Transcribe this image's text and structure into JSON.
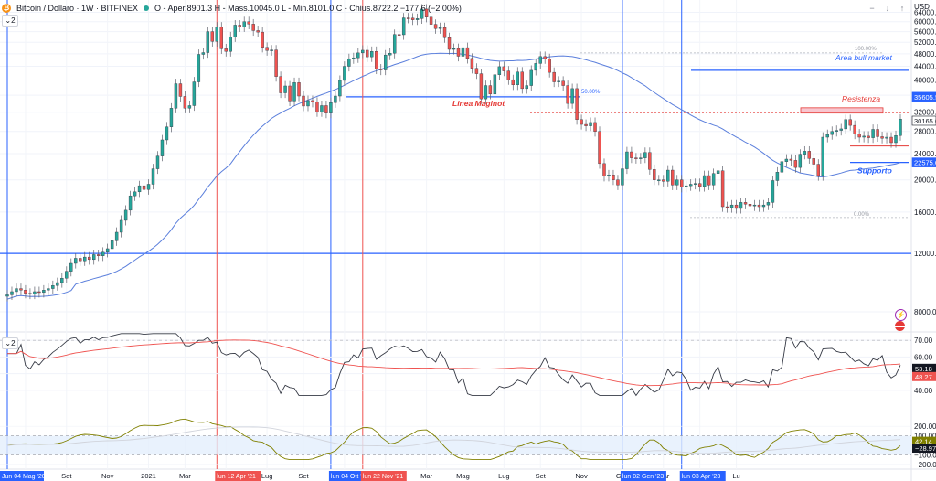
{
  "legend": {
    "symbol_title": "Bitcoin / Dollaro · 1W · BITFINEX",
    "ohlc": "O - Aper.8901.3  H - Mass.10045.0  L - Min.8101.0  C - Chius.8722.2  −177.6 (−2.00%)",
    "change": "",
    "pane_badge": "2"
  },
  "top_buttons": [
    "−",
    "↓",
    "↑"
  ],
  "chart_data": {
    "type": "candlestick",
    "title": "Bitcoin / Dollaro · 1W · BITFINEX",
    "currency": "USD",
    "scale": "log",
    "ylim": [
      7000,
      68000
    ],
    "price_ticks": [
      64000,
      60000,
      56000,
      52000,
      48000,
      44000,
      40000,
      36000,
      32000,
      28000,
      24000,
      20000,
      16000,
      12000,
      8000
    ],
    "price_tick_labels": [
      "64000.00",
      "60000.00",
      "56000.00",
      "52000.00",
      "48000.00",
      "44000.00",
      "40000.00",
      "36000.00",
      "32000.00",
      "28000.00",
      "24000.00",
      "20000.00",
      "16000.00",
      "12000.00",
      "8000.00"
    ],
    "x_labels": [
      "Jun 04 Mag '20",
      "Lug",
      "Set",
      "Nov",
      "2021",
      "Mar",
      "Mag",
      "Lug",
      "Set",
      "Nov",
      "2022",
      "Mar",
      "Mag",
      "Lug",
      "Set",
      "Nov",
      "Gen",
      "Mar",
      "Mag",
      "Lu"
    ],
    "closes": [
      9000,
      9200,
      9400,
      9300,
      9100,
      9050,
      9200,
      9150,
      9300,
      9400,
      9600,
      9800,
      10100,
      10600,
      11200,
      11600,
      11400,
      11700,
      11500,
      11900,
      11800,
      12100,
      12400,
      13100,
      13900,
      15100,
      16200,
      17900,
      18400,
      19200,
      18700,
      19400,
      21600,
      23600,
      26400,
      28900,
      32900,
      39000,
      35700,
      32900,
      33500,
      39500,
      47800,
      48400,
      56000,
      52300,
      57800,
      49700,
      48800,
      54000,
      58600,
      57900,
      60000,
      59000,
      56400,
      55800,
      50200,
      49100,
      49300,
      41000,
      36600,
      38400,
      34600,
      39300,
      35800,
      33400,
      34700,
      34300,
      32100,
      33500,
      31800,
      34200,
      35800,
      39900,
      44000,
      46400,
      46700,
      48300,
      49200,
      47000,
      48800,
      43200,
      42900,
      47600,
      48200,
      54900,
      54800,
      61600,
      61500,
      60800,
      61300,
      65500,
      61900,
      58900,
      57200,
      57600,
      53700,
      49500,
      49800,
      47200,
      50100,
      46500,
      43400,
      41800,
      35100,
      38500,
      36300,
      41500,
      43900,
      42600,
      40100,
      38700,
      42300,
      37700,
      38500,
      42800,
      44900,
      47100,
      46400,
      42200,
      39500,
      39700,
      38500,
      34000,
      37700,
      30400,
      29400,
      29100,
      29800,
      28000,
      22400,
      20500,
      20700,
      20000,
      19300,
      21600,
      24300,
      23300,
      23200,
      23300,
      24200,
      21500,
      20000,
      20000,
      19800,
      21400,
      19300,
      20000,
      19000,
      19200,
      19400,
      19500,
      19100,
      20600,
      19300,
      20900,
      21300,
      16600,
      16500,
      16800,
      16400,
      17100,
      16900,
      16700,
      16800,
      16600,
      16800,
      17100,
      19900,
      21100,
      22700,
      23100,
      22900,
      21800,
      23900,
      24400,
      23200,
      22300,
      20600,
      26900,
      27400,
      28000,
      28200,
      28500,
      30400,
      29200,
      27500,
      26900,
      27100,
      26800,
      28400,
      27000,
      26700,
      26900,
      25900,
      27200,
      30500
    ],
    "ma_long": "moving average (blue line)",
    "annotations": {
      "fib_top": "100.00%",
      "fib_mid": "50.00%",
      "fib_bottom": "0.00%",
      "area_bull": "Area bull market",
      "resistenza": "Resistenza",
      "linea_maginot": "Linea Maginot",
      "supporto": "Supporto"
    },
    "price_badges": [
      {
        "value": "35605.5",
        "color": "#2962ff"
      },
      {
        "value": "30165.0",
        "color": "#ffffff"
      },
      {
        "value": "22575.0",
        "color": "#2962ff"
      }
    ],
    "rsi": {
      "ticks": [
        70,
        60,
        50,
        40
      ],
      "tick_labels": [
        "70.00",
        "60.00",
        "50.00",
        "40.00"
      ],
      "badges": [
        {
          "value": "53.18",
          "color": "#131722"
        },
        {
          "value": "48.27",
          "color": "#ef5350"
        }
      ]
    },
    "osc": {
      "ticks": [
        200,
        100,
        -100,
        -200
      ],
      "tick_labels": [
        "200.00",
        "100.00",
        "−100.00",
        "−200.00"
      ],
      "badges": [
        {
          "value": "42.14",
          "color": "#808000"
        },
        {
          "value": "−28.97",
          "color": "#131722"
        }
      ]
    },
    "date_markers": [
      {
        "label": "lun 12 Apr '21",
        "color": "#ef5350"
      },
      {
        "label": "lun 04 Ott '21",
        "color": "#2962ff"
      },
      {
        "label": "lun 22 Nov '21",
        "color": "#ef5350"
      },
      {
        "label": "lun 02 Gen '23",
        "color": "#2962ff"
      },
      {
        "label": "lun 03 Apr '23",
        "color": "#2962ff"
      }
    ]
  },
  "colors": {
    "up": "#26a69a",
    "down": "#ef5350",
    "ma": "#5b7fdc",
    "blue": "#2962ff",
    "red": "#e53935"
  },
  "axis_currency": "USD"
}
